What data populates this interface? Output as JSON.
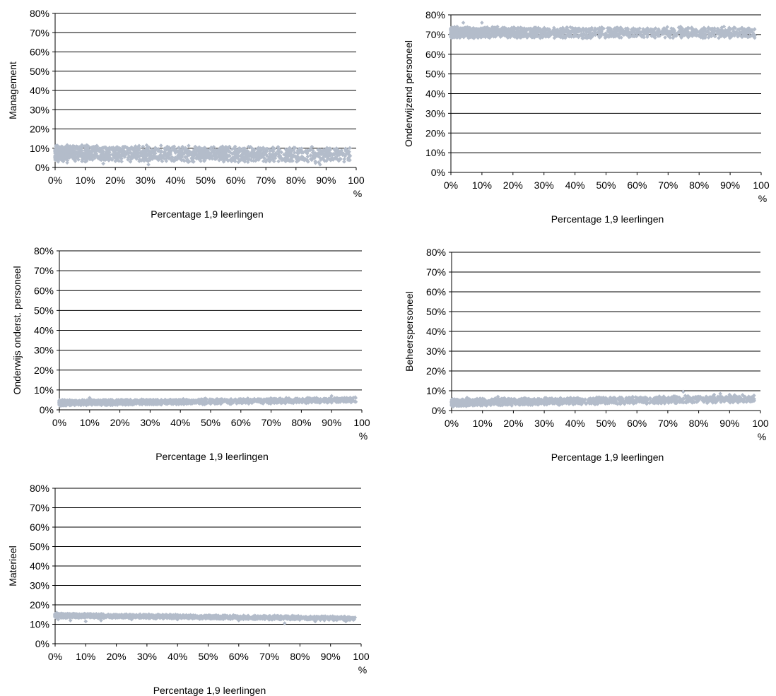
{
  "figure": {
    "marker_color": "#b3bcca",
    "grid_color": "#000000"
  },
  "chart_data": [
    {
      "type": "scatter",
      "ylabel": "Management",
      "xlabel": "Percentage 1,9 leerlingen",
      "xlim": [
        0,
        100
      ],
      "ylim": [
        0,
        80
      ],
      "x_ticks": [
        "0%",
        "10%",
        "20%",
        "30%",
        "40%",
        "50%",
        "60%",
        "70%",
        "80%",
        "90%",
        "100",
        "%"
      ],
      "y_ticks": [
        "0%",
        "10%",
        "20%",
        "30%",
        "40%",
        "50%",
        "60%",
        "70%",
        "80%"
      ],
      "grid": "horizontal",
      "band": {
        "center_start": 7.5,
        "center_end": 6.5,
        "spread": 4.5
      },
      "points": [
        [
          0.5,
          9.5
        ],
        [
          1,
          3
        ],
        [
          1.5,
          10.5
        ],
        [
          2,
          4
        ],
        [
          3,
          8
        ],
        [
          4,
          2.5
        ],
        [
          5,
          9
        ],
        [
          6,
          5
        ],
        [
          8,
          7
        ],
        [
          10,
          3
        ],
        [
          12,
          8.5
        ],
        [
          14,
          6
        ],
        [
          16,
          2
        ],
        [
          18,
          9
        ],
        [
          20,
          5
        ],
        [
          23,
          7
        ],
        [
          25,
          3
        ],
        [
          27,
          8
        ],
        [
          29,
          6
        ],
        [
          31,
          1.5
        ],
        [
          33,
          9
        ],
        [
          35,
          5
        ],
        [
          38,
          7
        ],
        [
          40,
          4
        ],
        [
          42,
          8.5
        ],
        [
          44,
          6
        ],
        [
          46,
          3
        ],
        [
          48,
          9
        ],
        [
          50,
          7
        ],
        [
          52,
          5
        ],
        [
          54,
          8
        ],
        [
          56,
          3
        ],
        [
          58,
          6
        ],
        [
          60,
          9
        ],
        [
          62,
          4
        ],
        [
          64,
          7
        ],
        [
          66,
          5
        ],
        [
          68,
          8
        ],
        [
          70,
          3
        ],
        [
          72,
          6
        ],
        [
          74,
          8.5
        ],
        [
          76,
          4
        ],
        [
          78,
          7
        ],
        [
          80,
          5
        ],
        [
          82,
          8
        ],
        [
          84,
          3
        ],
        [
          86,
          6
        ],
        [
          88,
          1.5
        ],
        [
          90,
          7
        ],
        [
          92,
          5
        ],
        [
          94,
          8
        ],
        [
          96,
          3
        ],
        [
          98,
          6
        ]
      ]
    },
    {
      "type": "scatter",
      "ylabel": "Onderwijzend personeel",
      "xlabel": "Percentage 1,9 leerlingen",
      "xlim": [
        0,
        100
      ],
      "ylim": [
        0,
        80
      ],
      "x_ticks": [
        "0%",
        "10%",
        "20%",
        "30%",
        "40%",
        "50%",
        "60%",
        "70%",
        "80%",
        "90%",
        "100",
        "%"
      ],
      "y_ticks": [
        "0%",
        "10%",
        "20%",
        "30%",
        "40%",
        "50%",
        "60%",
        "70%",
        "80%"
      ],
      "grid": "horizontal",
      "band": {
        "center_start": 71,
        "center_end": 71,
        "spread": 3
      },
      "points": [
        [
          0.5,
          73.5
        ],
        [
          1,
          68.5
        ],
        [
          2,
          74
        ],
        [
          3,
          69
        ],
        [
          4,
          76
        ],
        [
          5,
          70
        ],
        [
          7,
          73
        ],
        [
          9,
          69
        ],
        [
          10,
          76
        ],
        [
          12,
          72
        ],
        [
          15,
          74
        ],
        [
          18,
          69
        ],
        [
          20,
          73
        ],
        [
          25,
          70
        ],
        [
          28,
          72.5
        ],
        [
          32,
          69.5
        ],
        [
          36,
          72
        ],
        [
          40,
          70
        ],
        [
          45,
          72
        ],
        [
          50,
          69.5
        ],
        [
          55,
          71
        ],
        [
          60,
          70.5
        ],
        [
          65,
          72
        ],
        [
          70,
          69.5
        ],
        [
          74,
          74
        ],
        [
          75,
          70
        ],
        [
          78,
          72.5
        ],
        [
          82,
          70
        ],
        [
          86,
          73
        ],
        [
          88,
          74
        ],
        [
          90,
          70
        ],
        [
          94,
          72.5
        ],
        [
          96,
          71
        ],
        [
          98,
          69.5
        ]
      ]
    },
    {
      "type": "scatter",
      "ylabel": "Onderwijs onderst. personeel",
      "xlabel": "Percentage 1,9 leerlingen",
      "xlim": [
        0,
        100
      ],
      "ylim": [
        0,
        80
      ],
      "x_ticks": [
        "0%",
        "10%",
        "20%",
        "30%",
        "40%",
        "50%",
        "60%",
        "70%",
        "80%",
        "90%",
        "100",
        "%"
      ],
      "y_ticks": [
        "0%",
        "10%",
        "20%",
        "30%",
        "40%",
        "50%",
        "60%",
        "70%",
        "80%"
      ],
      "grid": "horizontal",
      "band": {
        "center_start": 3.5,
        "center_end": 5,
        "spread": 1.5
      },
      "points": [
        [
          0.5,
          2
        ],
        [
          1,
          5
        ],
        [
          2,
          2.5
        ],
        [
          5,
          4.5
        ],
        [
          8,
          2.5
        ],
        [
          10,
          6
        ],
        [
          12,
          3
        ],
        [
          15,
          5
        ],
        [
          20,
          3
        ],
        [
          25,
          5
        ],
        [
          30,
          3
        ],
        [
          40,
          5
        ],
        [
          50,
          3
        ],
        [
          60,
          5
        ],
        [
          70,
          4
        ],
        [
          75,
          6
        ],
        [
          80,
          4.5
        ],
        [
          85,
          6
        ],
        [
          88,
          5.5
        ],
        [
          90,
          7
        ],
        [
          92,
          4
        ],
        [
          95,
          6
        ],
        [
          98,
          4
        ]
      ]
    },
    {
      "type": "scatter",
      "ylabel": "Beheerspersoneel",
      "xlabel": "Percentage 1,9 leerlingen",
      "xlim": [
        0,
        100
      ],
      "ylim": [
        0,
        80
      ],
      "x_ticks": [
        "0%",
        "10%",
        "20%",
        "30%",
        "40%",
        "50%",
        "60%",
        "70%",
        "80%",
        "90%",
        "100",
        "%"
      ],
      "y_ticks": [
        "0%",
        "10%",
        "20%",
        "30%",
        "40%",
        "50%",
        "60%",
        "70%",
        "80%"
      ],
      "grid": "horizontal",
      "band": {
        "center_start": 4,
        "center_end": 6,
        "spread": 2
      },
      "points": [
        [
          0.5,
          2
        ],
        [
          1,
          5.5
        ],
        [
          2,
          3
        ],
        [
          5,
          6.5
        ],
        [
          8,
          3
        ],
        [
          10,
          6
        ],
        [
          15,
          7
        ],
        [
          20,
          4
        ],
        [
          25,
          6
        ],
        [
          30,
          3.5
        ],
        [
          40,
          6
        ],
        [
          50,
          4
        ],
        [
          60,
          6.5
        ],
        [
          70,
          5
        ],
        [
          75,
          9.5
        ],
        [
          78,
          4
        ],
        [
          80,
          7
        ],
        [
          85,
          8
        ],
        [
          87,
          8.5
        ],
        [
          90,
          8
        ],
        [
          92,
          5
        ],
        [
          95,
          7
        ],
        [
          98,
          5
        ]
      ]
    },
    {
      "type": "scatter",
      "ylabel": "Materieel",
      "xlabel": "Percentage 1,9 leerlingen",
      "xlim": [
        0,
        100
      ],
      "ylim": [
        0,
        80
      ],
      "x_ticks": [
        "0%",
        "10%",
        "20%",
        "30%",
        "40%",
        "50%",
        "60%",
        "70%",
        "80%",
        "90%",
        "100",
        "%"
      ],
      "y_ticks": [
        "0%",
        "10%",
        "20%",
        "30%",
        "40%",
        "50%",
        "60%",
        "70%",
        "80%"
      ],
      "grid": "horizontal",
      "band": {
        "center_start": 14.5,
        "center_end": 13,
        "spread": 1.2
      },
      "points": [
        [
          0.5,
          16
        ],
        [
          1,
          12.5
        ],
        [
          2,
          15.5
        ],
        [
          5,
          12
        ],
        [
          10,
          11.5
        ],
        [
          12,
          15
        ],
        [
          15,
          12
        ],
        [
          20,
          14.5
        ],
        [
          25,
          12.5
        ],
        [
          30,
          14.5
        ],
        [
          40,
          12.5
        ],
        [
          50,
          14
        ],
        [
          60,
          12
        ],
        [
          70,
          14
        ],
        [
          75,
          10.5
        ],
        [
          80,
          13.5
        ],
        [
          85,
          11.5
        ],
        [
          88,
          12
        ],
        [
          90,
          14
        ],
        [
          95,
          11.5
        ],
        [
          98,
          13.5
        ]
      ]
    }
  ]
}
